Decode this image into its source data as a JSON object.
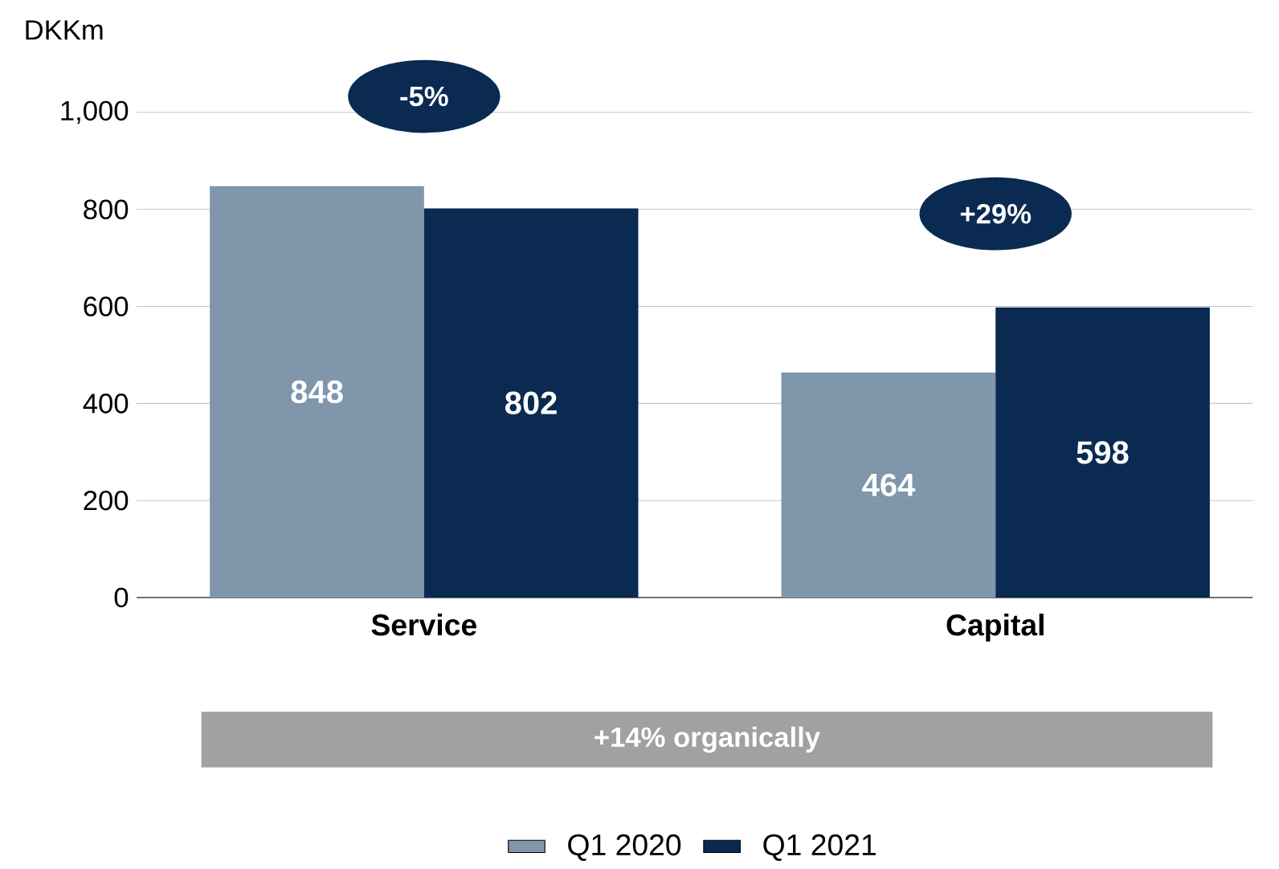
{
  "chart_data": {
    "type": "bar",
    "ylabel": "DKKm",
    "categories": [
      "Service",
      "Capital"
    ],
    "series": [
      {
        "name": "Q1 2020",
        "color": "#7f96ab",
        "values": [
          848,
          464
        ]
      },
      {
        "name": "Q1 2021",
        "color": "#0a2a52",
        "values": [
          802,
          598
        ]
      }
    ],
    "ylim": [
      0,
      1000
    ],
    "yticks": [
      0,
      200,
      400,
      600,
      800,
      {
        "value": 1000,
        "label": "1,000"
      }
    ],
    "grid": "y",
    "legend": "bottom",
    "data_labels": true,
    "annotations": [
      "-5%",
      "+29%",
      "+14% organically"
    ]
  }
}
